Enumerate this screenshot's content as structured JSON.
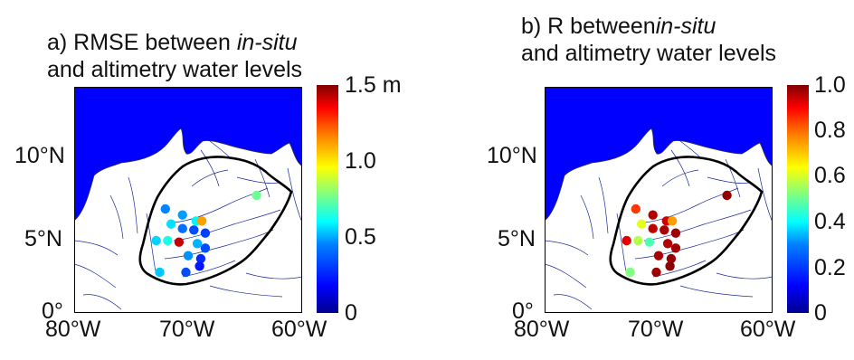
{
  "panels": [
    {
      "id": "a",
      "title_prefix": "a) RMSE between ",
      "title_italic": "in-situ",
      "title_line2": "and altimetry water levels",
      "colorbar": {
        "ticks": [
          "1.5 m",
          "1.0",
          "0.5",
          "0"
        ],
        "min": 0,
        "max": 1.5
      },
      "stations": [
        {
          "lon": -64.0,
          "lat": 7.8,
          "value": 0.72
        },
        {
          "lon": -72.0,
          "lat": 6.9,
          "value": 0.38
        },
        {
          "lon": -70.5,
          "lat": 6.5,
          "value": 0.42
        },
        {
          "lon": -69.3,
          "lat": 6.1,
          "value": 0.55
        },
        {
          "lon": -68.8,
          "lat": 6.1,
          "value": 1.08
        },
        {
          "lon": -71.5,
          "lat": 5.9,
          "value": 0.52
        },
        {
          "lon": -70.5,
          "lat": 5.6,
          "value": 0.35
        },
        {
          "lon": -69.5,
          "lat": 5.5,
          "value": 0.3
        },
        {
          "lon": -68.5,
          "lat": 5.3,
          "value": 0.28
        },
        {
          "lon": -72.8,
          "lat": 4.8,
          "value": 0.5
        },
        {
          "lon": -71.8,
          "lat": 4.8,
          "value": 0.6
        },
        {
          "lon": -70.8,
          "lat": 4.7,
          "value": 1.4
        },
        {
          "lon": -69.2,
          "lat": 4.6,
          "value": 0.45
        },
        {
          "lon": -68.5,
          "lat": 4.3,
          "value": 0.3
        },
        {
          "lon": -70.0,
          "lat": 3.8,
          "value": 0.4
        },
        {
          "lon": -68.9,
          "lat": 3.6,
          "value": 0.25
        },
        {
          "lon": -72.5,
          "lat": 2.7,
          "value": 0.48
        },
        {
          "lon": -70.2,
          "lat": 2.7,
          "value": 0.3
        },
        {
          "lon": -69.0,
          "lat": 3.1,
          "value": 0.22
        }
      ]
    },
    {
      "id": "b",
      "title_prefix": "b) R between",
      "title_italic": "in-situ",
      "title_line2": "and altimetry water levels",
      "colorbar": {
        "ticks": [
          "1.0",
          "0.8",
          "0.6",
          "0.4",
          "0.2",
          "0"
        ],
        "min": 0,
        "max": 1.0
      },
      "stations": [
        {
          "lon": -64.0,
          "lat": 7.8,
          "value": 0.98
        },
        {
          "lon": -72.0,
          "lat": 6.9,
          "value": 0.82
        },
        {
          "lon": -70.5,
          "lat": 6.5,
          "value": 0.95
        },
        {
          "lon": -69.3,
          "lat": 6.1,
          "value": 0.92
        },
        {
          "lon": -68.8,
          "lat": 6.1,
          "value": 0.72
        },
        {
          "lon": -71.5,
          "lat": 5.9,
          "value": 0.6
        },
        {
          "lon": -70.5,
          "lat": 5.6,
          "value": 0.94
        },
        {
          "lon": -69.5,
          "lat": 5.5,
          "value": 0.96
        },
        {
          "lon": -68.5,
          "lat": 5.3,
          "value": 0.97
        },
        {
          "lon": -72.8,
          "lat": 4.8,
          "value": 0.9
        },
        {
          "lon": -71.8,
          "lat": 4.8,
          "value": 0.55
        },
        {
          "lon": -70.8,
          "lat": 4.7,
          "value": 0.45
        },
        {
          "lon": -69.2,
          "lat": 4.6,
          "value": 0.95
        },
        {
          "lon": -68.5,
          "lat": 4.3,
          "value": 0.97
        },
        {
          "lon": -70.0,
          "lat": 3.8,
          "value": 0.96
        },
        {
          "lon": -68.9,
          "lat": 3.6,
          "value": 0.98
        },
        {
          "lon": -72.5,
          "lat": 2.7,
          "value": 0.5
        },
        {
          "lon": -70.2,
          "lat": 2.7,
          "value": 0.97
        },
        {
          "lon": -69.0,
          "lat": 3.1,
          "value": 0.99
        }
      ]
    }
  ],
  "axis": {
    "lat_ticks": [
      "10°N",
      "5°N",
      "0°"
    ],
    "lon_ticks": [
      "80°W",
      "70°W",
      "60°W"
    ]
  },
  "colors": {
    "ocean": "#0000ff",
    "land": "#ffffff",
    "river": "#1a2a9a",
    "basin_outline": "#000000"
  }
}
